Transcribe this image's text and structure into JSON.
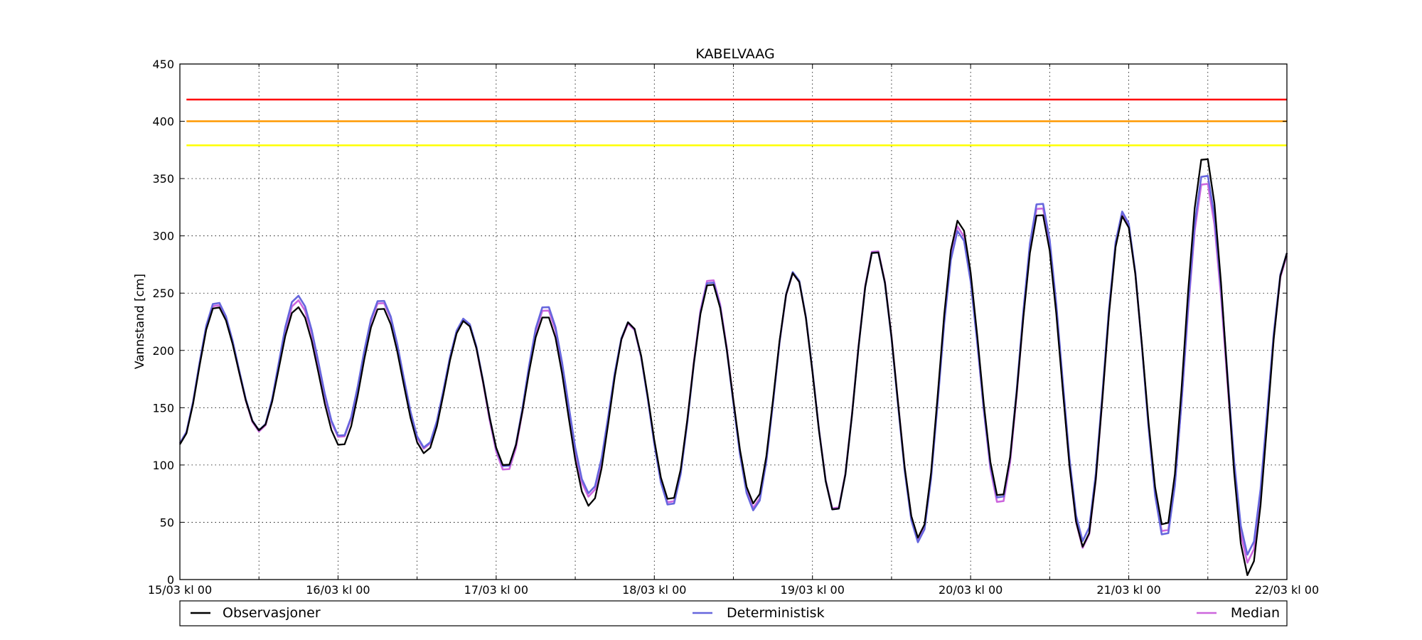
{
  "chart_data": {
    "type": "line",
    "title": "KABELVAAG",
    "ylabel": "Vannstand [cm]",
    "xlabel": "",
    "ylim": [
      0,
      450
    ],
    "yticks": [
      0,
      50,
      100,
      150,
      200,
      250,
      300,
      350,
      400,
      450
    ],
    "xlim_hours": [
      0,
      168
    ],
    "xticks": [
      {
        "hour": 0,
        "label": "15/03 kl 00"
      },
      {
        "hour": 24,
        "label": "16/03 kl 00"
      },
      {
        "hour": 48,
        "label": "17/03 kl 00"
      },
      {
        "hour": 72,
        "label": "18/03 kl 00"
      },
      {
        "hour": 96,
        "label": "19/03 kl 00"
      },
      {
        "hour": 120,
        "label": "20/03 kl 00"
      },
      {
        "hour": 144,
        "label": "21/03 kl 00"
      },
      {
        "hour": 168,
        "label": "22/03 kl 00"
      }
    ],
    "minor_xticks_hours": [
      12,
      36,
      60,
      84,
      108,
      132,
      156
    ],
    "grid": true,
    "legend_position": "bottom",
    "thresholds": [
      {
        "value": 419,
        "color": "#ff0000"
      },
      {
        "value": 400,
        "color": "#ff9900"
      },
      {
        "value": 379,
        "color": "#ffff00"
      }
    ],
    "series": [
      {
        "name": "Observasjoner",
        "color": "#000000",
        "highs": [
          [
            5.5,
            239
          ],
          [
            17.8,
            238
          ],
          [
            30.5,
            238
          ],
          [
            43.2,
            226
          ],
          [
            55.5,
            231
          ],
          [
            68.2,
            225
          ],
          [
            80.5,
            260
          ],
          [
            93.2,
            268
          ],
          [
            105.5,
            289
          ],
          [
            118.2,
            314
          ],
          [
            130.5,
            322
          ],
          [
            143.2,
            318
          ],
          [
            155.5,
            372
          ]
        ],
        "lows": [
          [
            0,
            118
          ],
          [
            12.2,
            130
          ],
          [
            24.5,
            116
          ],
          [
            37.2,
            110
          ],
          [
            49.5,
            98
          ],
          [
            62.2,
            64
          ],
          [
            74.5,
            68
          ],
          [
            87.2,
            66
          ],
          [
            99.5,
            58
          ],
          [
            112.2,
            36
          ],
          [
            124.5,
            70
          ],
          [
            137.2,
            28
          ],
          [
            149.5,
            44
          ],
          [
            162.2,
            3
          ]
        ],
        "end": [
          168,
          285
        ]
      },
      {
        "name": "Deterministisk",
        "color": "#6666dd",
        "highs": [
          [
            5.5,
            243
          ],
          [
            17.8,
            248
          ],
          [
            30.5,
            245
          ],
          [
            43.2,
            228
          ],
          [
            55.5,
            240
          ],
          [
            68.2,
            225
          ],
          [
            80.5,
            262
          ],
          [
            93.2,
            269
          ],
          [
            105.5,
            289
          ],
          [
            118.2,
            305
          ],
          [
            130.5,
            332
          ],
          [
            143.2,
            322
          ],
          [
            155.5,
            357
          ]
        ],
        "lows": [
          [
            0,
            119
          ],
          [
            12.2,
            130
          ],
          [
            24.5,
            124
          ],
          [
            37.2,
            115
          ],
          [
            49.5,
            97
          ],
          [
            62.2,
            75
          ],
          [
            74.5,
            63
          ],
          [
            87.2,
            60
          ],
          [
            99.5,
            58
          ],
          [
            112.2,
            32
          ],
          [
            124.5,
            68
          ],
          [
            137.2,
            33
          ],
          [
            149.5,
            35
          ],
          [
            162.2,
            21
          ]
        ],
        "end": [
          168,
          285
        ]
      },
      {
        "name": "Median",
        "color": "#cc66dd",
        "highs": [
          [
            5.5,
            241
          ],
          [
            17.8,
            244
          ],
          [
            30.5,
            243
          ],
          [
            43.2,
            227
          ],
          [
            55.5,
            237
          ],
          [
            68.2,
            224
          ],
          [
            80.5,
            264
          ],
          [
            93.2,
            268
          ],
          [
            105.5,
            290
          ],
          [
            118.2,
            309
          ],
          [
            130.5,
            328
          ],
          [
            143.2,
            320
          ],
          [
            155.5,
            350
          ]
        ],
        "lows": [
          [
            0,
            119
          ],
          [
            12.2,
            129
          ],
          [
            24.5,
            123
          ],
          [
            37.2,
            114
          ],
          [
            49.5,
            94
          ],
          [
            62.2,
            72
          ],
          [
            74.5,
            65
          ],
          [
            87.2,
            62
          ],
          [
            99.5,
            59
          ],
          [
            112.2,
            35
          ],
          [
            124.5,
            64
          ],
          [
            137.2,
            27
          ],
          [
            149.5,
            38
          ],
          [
            162.2,
            14
          ]
        ],
        "end": [
          168,
          283
        ]
      }
    ]
  }
}
